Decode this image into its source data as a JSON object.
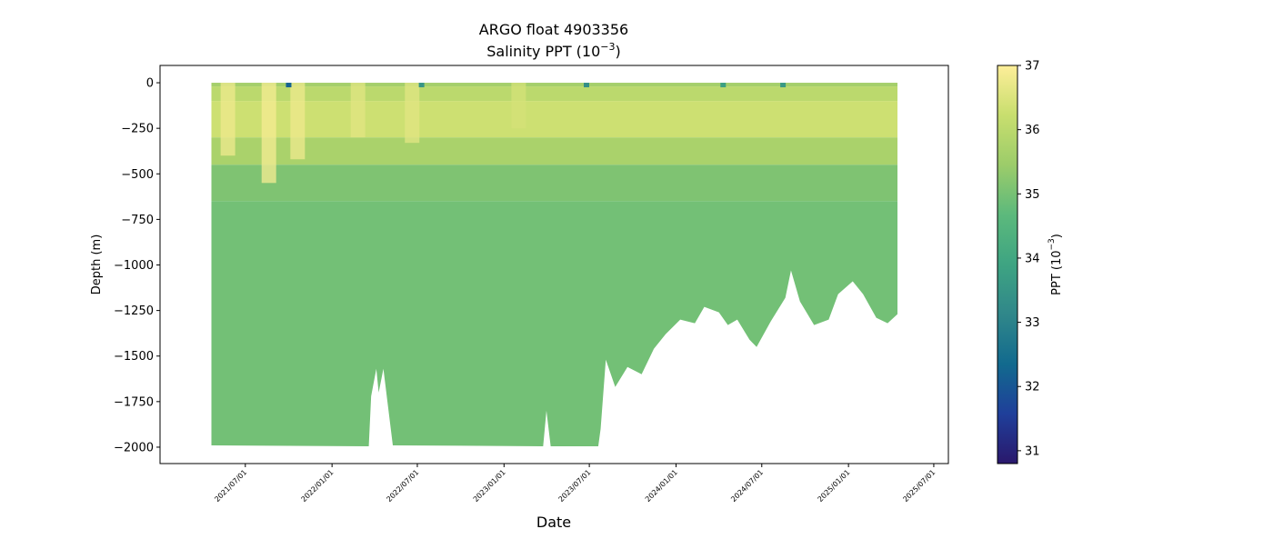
{
  "chart_data": {
    "type": "heatmap",
    "title_line1": "ARGO float 4903356",
    "title_line2_base": "Salinity PPT (10",
    "title_line2_exp": "−3",
    "title_line2_end": ")",
    "xlabel": "Date",
    "ylabel": "Depth (m)",
    "colorbar_label_base": "PPT (10",
    "colorbar_label_exp": "−3",
    "colorbar_label_end": ")",
    "colormap": "haline",
    "colormap_stops": [
      "#2a186c",
      "#1f3f9a",
      "#126a8e",
      "#30878a",
      "#3ea482",
      "#5cb97c",
      "#9ccc6a",
      "#c8de6e",
      "#fdee99"
    ],
    "color_range": [
      30.8,
      37.0
    ],
    "colorbar_ticks": [
      "31",
      "32",
      "33",
      "34",
      "35",
      "36",
      "37"
    ],
    "xlim": [
      "2021-01-01",
      "2025-08-01"
    ],
    "ylim": [
      -2090,
      95
    ],
    "x_ticks": [
      "2021/07/01",
      "2022/01/01",
      "2022/07/01",
      "2023/01/01",
      "2023/07/01",
      "2024/01/01",
      "2024/07/01",
      "2025/01/01",
      "2025/07/01"
    ],
    "y_ticks": [
      "0",
      "−250",
      "−500",
      "−750",
      "−1000",
      "−1250",
      "−1500",
      "−1750",
      "−2000"
    ],
    "y_tick_values": [
      0,
      -250,
      -500,
      -750,
      -1000,
      -1250,
      -1500,
      -1750,
      -2000
    ],
    "grid": false,
    "data_start": "2021-04-20",
    "data_end": "2025-04-15",
    "profile_max_depth": [
      {
        "date": "2021-04-20",
        "depth": -1990
      },
      {
        "date": "2022-03-20",
        "depth": -1995
      },
      {
        "date": "2022-03-25",
        "depth": -1720
      },
      {
        "date": "2022-04-05",
        "depth": -1570
      },
      {
        "date": "2022-04-10",
        "depth": -1700
      },
      {
        "date": "2022-04-20",
        "depth": -1570
      },
      {
        "date": "2022-05-10",
        "depth": -1990
      },
      {
        "date": "2023-03-25",
        "depth": -1995
      },
      {
        "date": "2023-04-01",
        "depth": -1800
      },
      {
        "date": "2023-04-10",
        "depth": -1995
      },
      {
        "date": "2023-07-20",
        "depth": -1995
      },
      {
        "date": "2023-07-25",
        "depth": -1900
      },
      {
        "date": "2023-08-05",
        "depth": -1520
      },
      {
        "date": "2023-08-25",
        "depth": -1670
      },
      {
        "date": "2023-09-20",
        "depth": -1560
      },
      {
        "date": "2023-10-20",
        "depth": -1600
      },
      {
        "date": "2023-11-15",
        "depth": -1460
      },
      {
        "date": "2023-12-10",
        "depth": -1380
      },
      {
        "date": "2024-01-10",
        "depth": -1300
      },
      {
        "date": "2024-02-10",
        "depth": -1320
      },
      {
        "date": "2024-03-01",
        "depth": -1230
      },
      {
        "date": "2024-04-01",
        "depth": -1260
      },
      {
        "date": "2024-04-20",
        "depth": -1330
      },
      {
        "date": "2024-05-10",
        "depth": -1300
      },
      {
        "date": "2024-06-05",
        "depth": -1410
      },
      {
        "date": "2024-06-20",
        "depth": -1450
      },
      {
        "date": "2024-07-20",
        "depth": -1310
      },
      {
        "date": "2024-08-20",
        "depth": -1180
      },
      {
        "date": "2024-09-01",
        "depth": -1030
      },
      {
        "date": "2024-09-20",
        "depth": -1200
      },
      {
        "date": "2024-10-20",
        "depth": -1330
      },
      {
        "date": "2024-11-20",
        "depth": -1300
      },
      {
        "date": "2024-12-10",
        "depth": -1160
      },
      {
        "date": "2025-01-10",
        "depth": -1090
      },
      {
        "date": "2025-02-01",
        "depth": -1160
      },
      {
        "date": "2025-03-01",
        "depth": -1290
      },
      {
        "date": "2025-03-25",
        "depth": -1320
      },
      {
        "date": "2025-04-15",
        "depth": -1270
      }
    ],
    "salinity_layers": [
      {
        "depth_top": 0,
        "depth_bottom": -20,
        "value": 35.6
      },
      {
        "depth_top": -20,
        "depth_bottom": -100,
        "value": 36.0
      },
      {
        "depth_top": -100,
        "depth_bottom": -300,
        "value": 36.3
      },
      {
        "depth_top": -300,
        "depth_bottom": -450,
        "value": 35.7
      },
      {
        "depth_top": -450,
        "depth_bottom": -650,
        "value": 35.1
      },
      {
        "depth_top": -650,
        "depth_bottom": -2000,
        "value": 34.95
      }
    ],
    "high_salinity_episodes": [
      {
        "date": "2021-05-25",
        "depth_bottom": -400,
        "value": 36.8
      },
      {
        "date": "2021-08-20",
        "depth_bottom": -550,
        "value": 36.9
      },
      {
        "date": "2021-10-20",
        "depth_bottom": -420,
        "value": 36.8
      },
      {
        "date": "2022-02-25",
        "depth_bottom": -300,
        "value": 36.6
      },
      {
        "date": "2022-06-20",
        "depth_bottom": -330,
        "value": 36.6
      },
      {
        "date": "2023-02-01",
        "depth_bottom": -250,
        "value": 36.4
      }
    ],
    "surface_fresh_episodes": [
      {
        "date": "2021-10-01",
        "value": 32.2
      },
      {
        "date": "2022-07-10",
        "value": 33.5
      },
      {
        "date": "2023-06-25",
        "value": 33.3
      },
      {
        "date": "2024-04-10",
        "value": 33.8
      },
      {
        "date": "2024-08-15",
        "value": 33.6
      }
    ]
  }
}
